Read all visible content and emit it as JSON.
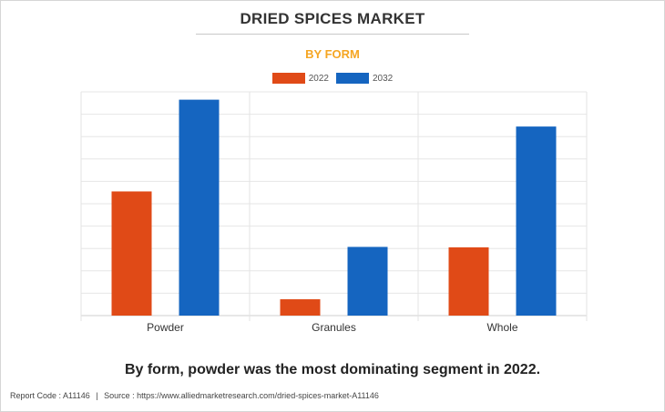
{
  "header": {
    "title": "DRIED SPICES MARKET",
    "subtitle": "BY FORM"
  },
  "caption": "By form, powder was the most dominating segment in 2022.",
  "footer": {
    "report_code": "Report Code : A11146",
    "separator": "|",
    "source": "Source : https://www.alliedmarketresearch.com/dried-spices-market-A11146"
  },
  "colors": {
    "accent_subtitle": "#f5a623",
    "series_2022": "#e04a17",
    "series_2032": "#1565c0"
  },
  "chart_data": {
    "type": "bar",
    "title": "DRIED SPICES MARKET",
    "subtitle": "BY FORM",
    "categories": [
      "Powder",
      "Granules",
      "Whole"
    ],
    "series": [
      {
        "name": "2022",
        "values": [
          55.5,
          7.3,
          30.5
        ]
      },
      {
        "name": "2032",
        "values": [
          96.5,
          30.7,
          84.5
        ]
      }
    ],
    "ylim": [
      0,
      100
    ],
    "y_ticks_labeled": false,
    "grid": true,
    "legend": "top-center",
    "xlabel": "",
    "ylabel": ""
  }
}
